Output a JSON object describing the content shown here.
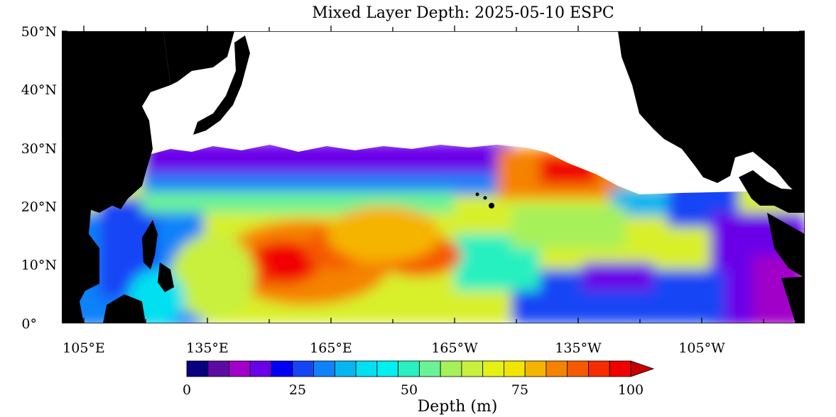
{
  "title": "Mixed Layer Depth: 2025-05-10 ESPC",
  "lat_labels": [
    "50°N",
    "40°N",
    "30°N",
    "20°N",
    "10°N",
    "0°"
  ],
  "lon_labels": [
    "105°E",
    "135°E",
    "165°E",
    "165°W",
    "135°W",
    "105°W"
  ],
  "colorbar": {
    "label": "Depth (m)",
    "tick_labels": [
      "0",
      "25",
      "50",
      "75",
      "100"
    ],
    "colors": [
      "#07007f",
      "#5d0aa3",
      "#a000c8",
      "#6a00e8",
      "#0000f5",
      "#1544f5",
      "#0f82fa",
      "#06b6f0",
      "#00e0f0",
      "#00f0f0",
      "#28f0c0",
      "#6cf296",
      "#a6f05a",
      "#c8f03c",
      "#e6f014",
      "#f0e600",
      "#f5b400",
      "#f58200",
      "#f55a00",
      "#f52d00",
      "#f00000",
      "#c80000"
    ],
    "extend": "max"
  },
  "map_extent": {
    "lon_min": 95,
    "lon_max": 275,
    "lat_min": 0,
    "lat_max": 50
  },
  "land_color": "#000000",
  "nodata_color": "#ffffff"
}
